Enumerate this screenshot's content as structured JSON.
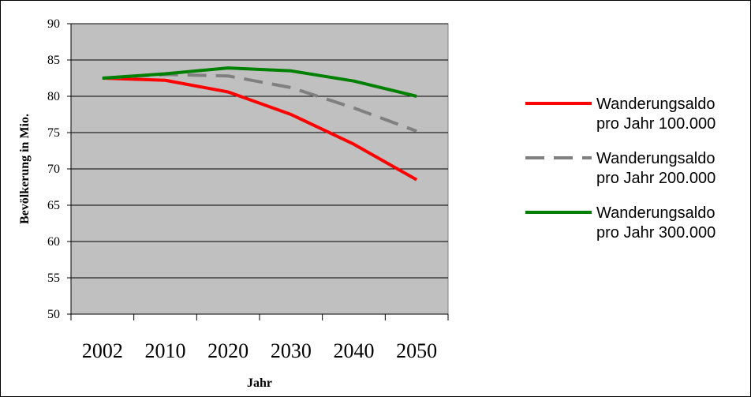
{
  "chart_data": {
    "type": "line",
    "title": "",
    "xlabel": "Jahr",
    "ylabel": "Bevölkerung in Mio.",
    "categories": [
      "2002",
      "2010",
      "2020",
      "2030",
      "2040",
      "2050"
    ],
    "ylim": [
      50,
      90
    ],
    "yticks": [
      50,
      55,
      60,
      65,
      70,
      75,
      80,
      85,
      90
    ],
    "grid": "horizontal",
    "plot_background": "#c0c0c0",
    "legend_position": "right",
    "series": [
      {
        "name_lines": [
          "Wanderungsaldo",
          "pro Jahr 100.000"
        ],
        "color": "#ff0000",
        "dash": "solid",
        "values": [
          82.5,
          82.2,
          80.6,
          77.5,
          73.4,
          68.5
        ]
      },
      {
        "name_lines": [
          "Wanderungsaldo",
          "pro Jahr 200.000"
        ],
        "color": "#808080",
        "dash": "dashed",
        "values": [
          82.5,
          83.0,
          82.8,
          81.2,
          78.4,
          75.2
        ]
      },
      {
        "name_lines": [
          "Wanderungsaldo",
          "pro Jahr 300.000"
        ],
        "color": "#008000",
        "dash": "solid",
        "values": [
          82.5,
          83.1,
          83.9,
          83.5,
          82.1,
          80.0
        ]
      }
    ]
  }
}
